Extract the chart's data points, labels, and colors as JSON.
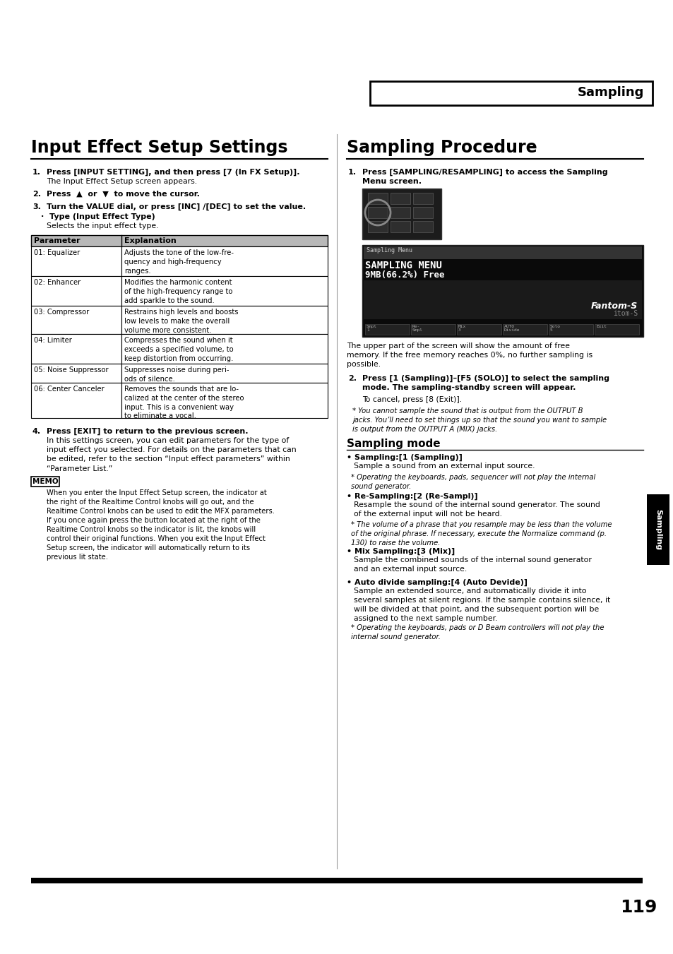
{
  "page_num": "119",
  "header_label": "Sampling",
  "left_title": "Input Effect Setup Settings",
  "right_title": "Sampling Procedure",
  "table_rows": [
    [
      "01: Equalizer",
      "Adjusts the tone of the low-fre-\nquency and high-frequency\nranges."
    ],
    [
      "02: Enhancer",
      "Modifies the harmonic content\nof the high-frequency range to\nadd sparkle to the sound."
    ],
    [
      "03: Compressor",
      "Restrains high levels and boosts\nlow levels to make the overall\nvolume more consistent."
    ],
    [
      "04: Limiter",
      "Compresses the sound when it\nexceeds a specified volume, to\nkeep distortion from occurring."
    ],
    [
      "05: Noise Suppressor",
      "Suppresses noise during peri-\nods of silence."
    ],
    [
      "06: Center Canceler",
      "Removes the sounds that are lo-\ncalized at the center of the stereo\ninput. This is a convenient way\nto eliminate a vocal."
    ]
  ],
  "side_label": "Sampling",
  "bg_color": "#ffffff",
  "text_color": "#000000"
}
